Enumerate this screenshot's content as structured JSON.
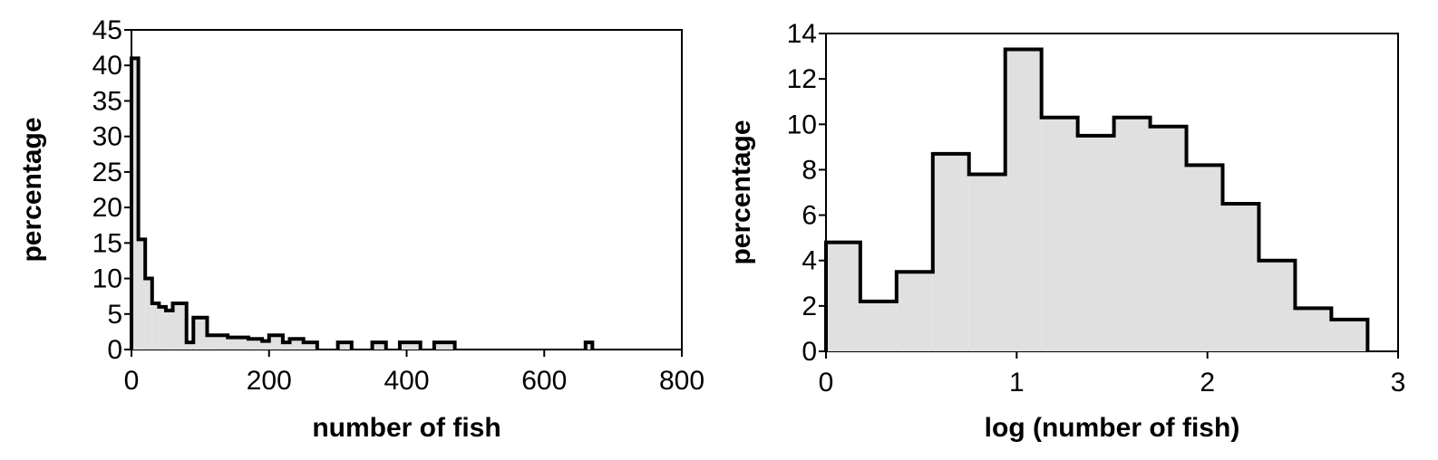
{
  "chart_data": [
    {
      "type": "histogram",
      "title": "",
      "xlabel": "number of fish",
      "ylabel": "percentage",
      "xlim": [
        0,
        800
      ],
      "ylim": [
        0,
        45
      ],
      "xticks": [
        0,
        200,
        400,
        600,
        800
      ],
      "yticks": [
        0,
        5,
        10,
        15,
        20,
        25,
        30,
        35,
        40,
        45
      ],
      "grid": false,
      "fill_color": "#e0e0e0",
      "line_color": "#000000",
      "bins": [
        {
          "x0": 0,
          "x1": 10,
          "value": 41
        },
        {
          "x0": 10,
          "x1": 20,
          "value": 15.5
        },
        {
          "x0": 20,
          "x1": 30,
          "value": 10
        },
        {
          "x0": 30,
          "x1": 40,
          "value": 6.5
        },
        {
          "x0": 40,
          "x1": 50,
          "value": 6
        },
        {
          "x0": 50,
          "x1": 60,
          "value": 5.5
        },
        {
          "x0": 60,
          "x1": 70,
          "value": 6.5
        },
        {
          "x0": 70,
          "x1": 80,
          "value": 6.5
        },
        {
          "x0": 80,
          "x1": 90,
          "value": 1
        },
        {
          "x0": 90,
          "x1": 100,
          "value": 4.5
        },
        {
          "x0": 100,
          "x1": 110,
          "value": 4.5
        },
        {
          "x0": 110,
          "x1": 120,
          "value": 2
        },
        {
          "x0": 120,
          "x1": 130,
          "value": 2
        },
        {
          "x0": 130,
          "x1": 140,
          "value": 2
        },
        {
          "x0": 140,
          "x1": 150,
          "value": 1.7
        },
        {
          "x0": 150,
          "x1": 160,
          "value": 1.7
        },
        {
          "x0": 160,
          "x1": 170,
          "value": 1.7
        },
        {
          "x0": 170,
          "x1": 180,
          "value": 1.5
        },
        {
          "x0": 180,
          "x1": 190,
          "value": 1.5
        },
        {
          "x0": 190,
          "x1": 200,
          "value": 1.2
        },
        {
          "x0": 200,
          "x1": 210,
          "value": 2
        },
        {
          "x0": 210,
          "x1": 220,
          "value": 2
        },
        {
          "x0": 220,
          "x1": 230,
          "value": 1
        },
        {
          "x0": 230,
          "x1": 240,
          "value": 1.5
        },
        {
          "x0": 240,
          "x1": 250,
          "value": 1.5
        },
        {
          "x0": 250,
          "x1": 260,
          "value": 1
        },
        {
          "x0": 260,
          "x1": 270,
          "value": 1
        },
        {
          "x0": 300,
          "x1": 310,
          "value": 1
        },
        {
          "x0": 310,
          "x1": 320,
          "value": 1
        },
        {
          "x0": 350,
          "x1": 360,
          "value": 1
        },
        {
          "x0": 360,
          "x1": 370,
          "value": 1
        },
        {
          "x0": 390,
          "x1": 400,
          "value": 1
        },
        {
          "x0": 400,
          "x1": 410,
          "value": 1
        },
        {
          "x0": 410,
          "x1": 420,
          "value": 1
        },
        {
          "x0": 440,
          "x1": 450,
          "value": 1
        },
        {
          "x0": 450,
          "x1": 460,
          "value": 1
        },
        {
          "x0": 460,
          "x1": 470,
          "value": 1
        },
        {
          "x0": 660,
          "x1": 670,
          "value": 1
        }
      ]
    },
    {
      "type": "histogram",
      "title": "",
      "xlabel": "log (number of fish)",
      "ylabel": "percentage",
      "xlim": [
        0,
        3
      ],
      "ylim": [
        0,
        14
      ],
      "xticks": [
        0,
        1,
        2,
        3
      ],
      "yticks": [
        0,
        2,
        4,
        6,
        8,
        10,
        12,
        14
      ],
      "grid": false,
      "fill_color": "#e0e0e0",
      "line_color": "#000000",
      "bins": [
        {
          "x0": 0.0,
          "x1": 0.18,
          "value": 4.8
        },
        {
          "x0": 0.18,
          "x1": 0.37,
          "value": 2.2
        },
        {
          "x0": 0.37,
          "x1": 0.56,
          "value": 3.5
        },
        {
          "x0": 0.56,
          "x1": 0.75,
          "value": 8.7
        },
        {
          "x0": 0.75,
          "x1": 0.94,
          "value": 7.8
        },
        {
          "x0": 0.94,
          "x1": 1.13,
          "value": 13.3
        },
        {
          "x0": 1.13,
          "x1": 1.32,
          "value": 10.3
        },
        {
          "x0": 1.32,
          "x1": 1.51,
          "value": 9.5
        },
        {
          "x0": 1.51,
          "x1": 1.7,
          "value": 10.3
        },
        {
          "x0": 1.7,
          "x1": 1.89,
          "value": 9.9
        },
        {
          "x0": 1.89,
          "x1": 2.08,
          "value": 8.2
        },
        {
          "x0": 2.08,
          "x1": 2.27,
          "value": 6.5
        },
        {
          "x0": 2.27,
          "x1": 2.46,
          "value": 4.0
        },
        {
          "x0": 2.46,
          "x1": 2.65,
          "value": 1.9
        },
        {
          "x0": 2.65,
          "x1": 2.84,
          "value": 1.4
        }
      ]
    }
  ]
}
